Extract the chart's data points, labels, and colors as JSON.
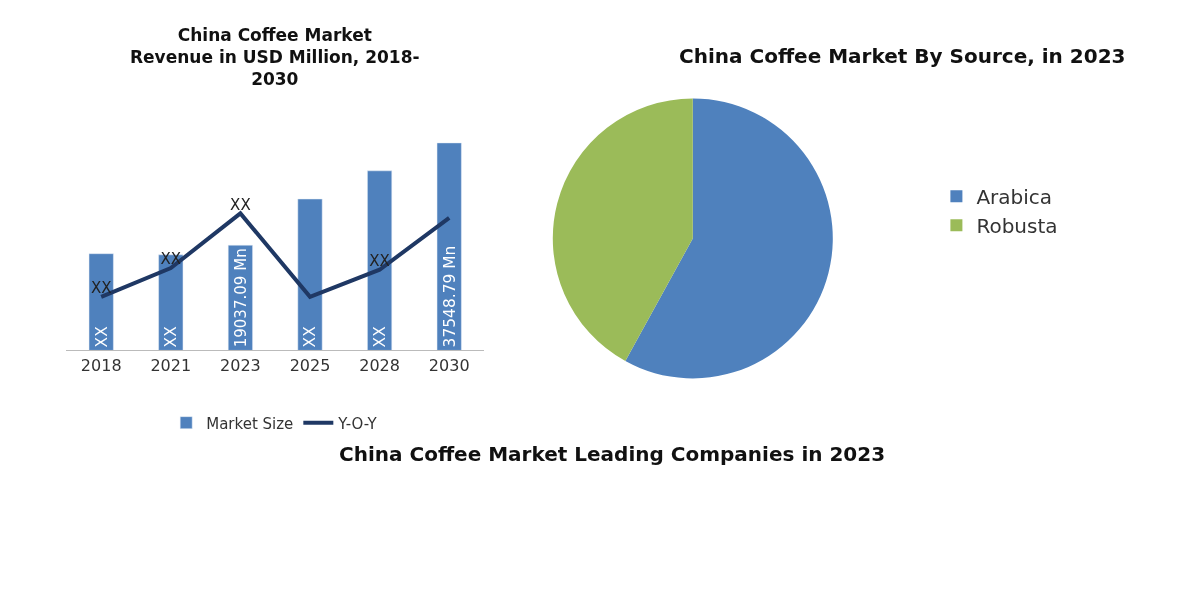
{
  "chart_data": [
    {
      "type": "bar",
      "title": "China Coffee Market Revenue in USD Million, 2018-2030",
      "categories": [
        "2018",
        "2021",
        "2023",
        "2025",
        "2028",
        "2030"
      ],
      "tick_labels": "x",
      "legend": "bottom",
      "series": [
        {
          "name": "Market Size",
          "type": "bar",
          "color": "#4f81bd",
          "values": [
            17500,
            17300,
            19037.09,
            27400,
            32500,
            37548.79
          ],
          "value_labels": [
            "XX",
            "XX",
            "19037.09 Mn",
            "XX",
            "XX",
            "37548.79 Mn"
          ]
        },
        {
          "name": "Y-O-Y",
          "type": "line",
          "color": "#1f3864",
          "values": [
            9700,
            14900,
            24800,
            9700,
            14600,
            24000
          ],
          "value_labels": [
            "XX",
            "XX",
            "XX",
            null,
            "XX",
            null
          ]
        }
      ]
    },
    {
      "type": "pie",
      "title": "China Coffee Market By Source, in 2023",
      "categories": [
        "Arabica",
        "Robusta"
      ],
      "values": [
        58,
        42
      ],
      "colors": [
        "#4f81bd",
        "#9bbb59"
      ],
      "legend": "right"
    },
    {
      "type": "other",
      "title": "China Coffee Market Leading Companies in 2023"
    }
  ]
}
